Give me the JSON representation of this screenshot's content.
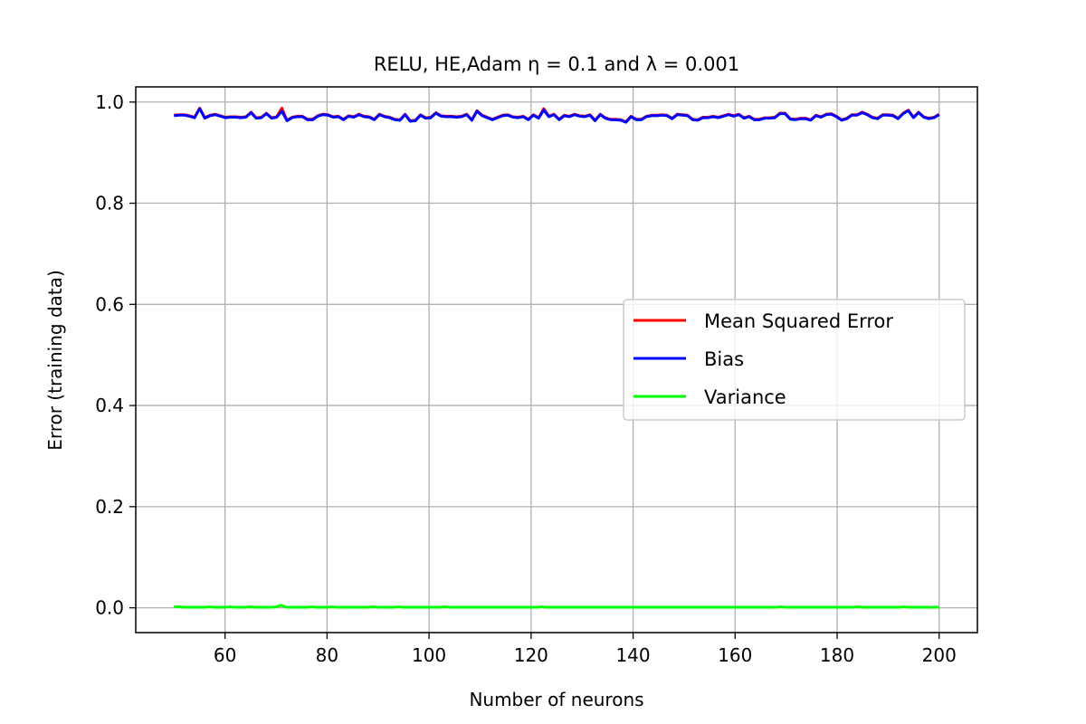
{
  "chart_data": {
    "type": "line",
    "title": "RELU, HE,Adam η = 0.1 and λ = 0.001",
    "xlabel": "Number of neurons",
    "ylabel": "Error (training data)",
    "xlim": [
      42.5,
      207.5
    ],
    "ylim": [
      -0.049,
      1.03
    ],
    "xticks": [
      60,
      80,
      100,
      120,
      140,
      160,
      180,
      200
    ],
    "yticks": [
      0.0,
      0.2,
      0.4,
      0.6,
      0.8,
      1.0
    ],
    "ytick_labels": [
      "0.0",
      "0.2",
      "0.4",
      "0.6",
      "0.8",
      "1.0"
    ],
    "grid": true,
    "legend_position": "center-right",
    "x_start": 50,
    "x_end": 200,
    "series": [
      {
        "name": "Mean Squared Error",
        "color": "#ff0000",
        "values": [
          0.974,
          0.975,
          0.975,
          0.973,
          0.97,
          0.988,
          0.969,
          0.974,
          0.976,
          0.973,
          0.97,
          0.971,
          0.971,
          0.97,
          0.971,
          0.98,
          0.969,
          0.97,
          0.978,
          0.969,
          0.971,
          0.988,
          0.964,
          0.97,
          0.972,
          0.972,
          0.966,
          0.966,
          0.973,
          0.976,
          0.975,
          0.971,
          0.972,
          0.966,
          0.973,
          0.971,
          0.976,
          0.972,
          0.971,
          0.966,
          0.976,
          0.972,
          0.97,
          0.966,
          0.965,
          0.976,
          0.963,
          0.964,
          0.975,
          0.969,
          0.97,
          0.979,
          0.973,
          0.972,
          0.972,
          0.971,
          0.972,
          0.976,
          0.965,
          0.983,
          0.974,
          0.97,
          0.966,
          0.97,
          0.974,
          0.975,
          0.971,
          0.97,
          0.972,
          0.966,
          0.975,
          0.969,
          0.987,
          0.972,
          0.976,
          0.966,
          0.974,
          0.972,
          0.976,
          0.973,
          0.972,
          0.975,
          0.964,
          0.976,
          0.969,
          0.966,
          0.966,
          0.965,
          0.961,
          0.972,
          0.966,
          0.966,
          0.972,
          0.974,
          0.974,
          0.975,
          0.974,
          0.968,
          0.976,
          0.975,
          0.974,
          0.966,
          0.965,
          0.97,
          0.97,
          0.972,
          0.97,
          0.973,
          0.976,
          0.973,
          0.976,
          0.969,
          0.972,
          0.966,
          0.966,
          0.969,
          0.969,
          0.97,
          0.978,
          0.978,
          0.967,
          0.966,
          0.968,
          0.968,
          0.965,
          0.974,
          0.971,
          0.976,
          0.977,
          0.972,
          0.965,
          0.968,
          0.975,
          0.975,
          0.98,
          0.976,
          0.97,
          0.968,
          0.975,
          0.975,
          0.974,
          0.968,
          0.978,
          0.984,
          0.97,
          0.98,
          0.971,
          0.968,
          0.97,
          0.976
        ]
      },
      {
        "name": "Bias",
        "color": "#0000ff",
        "values": [
          0.973,
          0.974,
          0.974,
          0.972,
          0.969,
          0.987,
          0.968,
          0.973,
          0.975,
          0.972,
          0.969,
          0.97,
          0.97,
          0.969,
          0.97,
          0.979,
          0.968,
          0.969,
          0.977,
          0.968,
          0.97,
          0.982,
          0.963,
          0.969,
          0.971,
          0.971,
          0.965,
          0.965,
          0.972,
          0.975,
          0.974,
          0.97,
          0.971,
          0.965,
          0.972,
          0.97,
          0.975,
          0.971,
          0.97,
          0.965,
          0.975,
          0.971,
          0.969,
          0.965,
          0.964,
          0.975,
          0.962,
          0.963,
          0.974,
          0.968,
          0.969,
          0.978,
          0.972,
          0.971,
          0.971,
          0.97,
          0.971,
          0.975,
          0.964,
          0.982,
          0.973,
          0.969,
          0.965,
          0.969,
          0.973,
          0.974,
          0.97,
          0.969,
          0.971,
          0.965,
          0.974,
          0.968,
          0.984,
          0.971,
          0.975,
          0.965,
          0.973,
          0.971,
          0.975,
          0.972,
          0.971,
          0.974,
          0.963,
          0.975,
          0.968,
          0.965,
          0.965,
          0.964,
          0.96,
          0.971,
          0.965,
          0.965,
          0.971,
          0.973,
          0.973,
          0.974,
          0.973,
          0.967,
          0.975,
          0.974,
          0.973,
          0.965,
          0.964,
          0.969,
          0.969,
          0.971,
          0.969,
          0.972,
          0.975,
          0.972,
          0.975,
          0.968,
          0.971,
          0.965,
          0.965,
          0.968,
          0.968,
          0.969,
          0.977,
          0.977,
          0.966,
          0.965,
          0.967,
          0.967,
          0.964,
          0.973,
          0.97,
          0.975,
          0.976,
          0.971,
          0.964,
          0.967,
          0.974,
          0.974,
          0.979,
          0.975,
          0.969,
          0.967,
          0.974,
          0.974,
          0.973,
          0.967,
          0.977,
          0.983,
          0.969,
          0.979,
          0.97,
          0.967,
          0.969,
          0.975
        ]
      },
      {
        "name": "Variance",
        "color": "#00ff00",
        "values": [
          0.002,
          0.002,
          0.001,
          0.001,
          0.001,
          0.001,
          0.001,
          0.002,
          0.001,
          0.001,
          0.001,
          0.002,
          0.001,
          0.001,
          0.001,
          0.002,
          0.001,
          0.001,
          0.001,
          0.001,
          0.002,
          0.005,
          0.001,
          0.001,
          0.001,
          0.001,
          0.001,
          0.002,
          0.001,
          0.001,
          0.001,
          0.002,
          0.001,
          0.001,
          0.001,
          0.001,
          0.001,
          0.001,
          0.001,
          0.002,
          0.001,
          0.001,
          0.001,
          0.001,
          0.002,
          0.001,
          0.001,
          0.001,
          0.001,
          0.001,
          0.001,
          0.001,
          0.001,
          0.002,
          0.001,
          0.001,
          0.001,
          0.001,
          0.001,
          0.001,
          0.001,
          0.001,
          0.001,
          0.001,
          0.001,
          0.001,
          0.001,
          0.001,
          0.001,
          0.001,
          0.001,
          0.001,
          0.002,
          0.001,
          0.001,
          0.001,
          0.001,
          0.001,
          0.001,
          0.001,
          0.001,
          0.001,
          0.001,
          0.001,
          0.001,
          0.001,
          0.001,
          0.001,
          0.001,
          0.001,
          0.001,
          0.001,
          0.001,
          0.001,
          0.001,
          0.001,
          0.001,
          0.001,
          0.001,
          0.001,
          0.001,
          0.001,
          0.001,
          0.001,
          0.001,
          0.001,
          0.001,
          0.001,
          0.001,
          0.001,
          0.001,
          0.001,
          0.001,
          0.001,
          0.001,
          0.001,
          0.001,
          0.001,
          0.001,
          0.002,
          0.001,
          0.001,
          0.001,
          0.001,
          0.001,
          0.001,
          0.001,
          0.001,
          0.001,
          0.001,
          0.001,
          0.001,
          0.001,
          0.001,
          0.002,
          0.001,
          0.001,
          0.001,
          0.001,
          0.001,
          0.001,
          0.001,
          0.001,
          0.002,
          0.001,
          0.001,
          0.001,
          0.001,
          0.001,
          0.001,
          0.001
        ]
      }
    ]
  }
}
